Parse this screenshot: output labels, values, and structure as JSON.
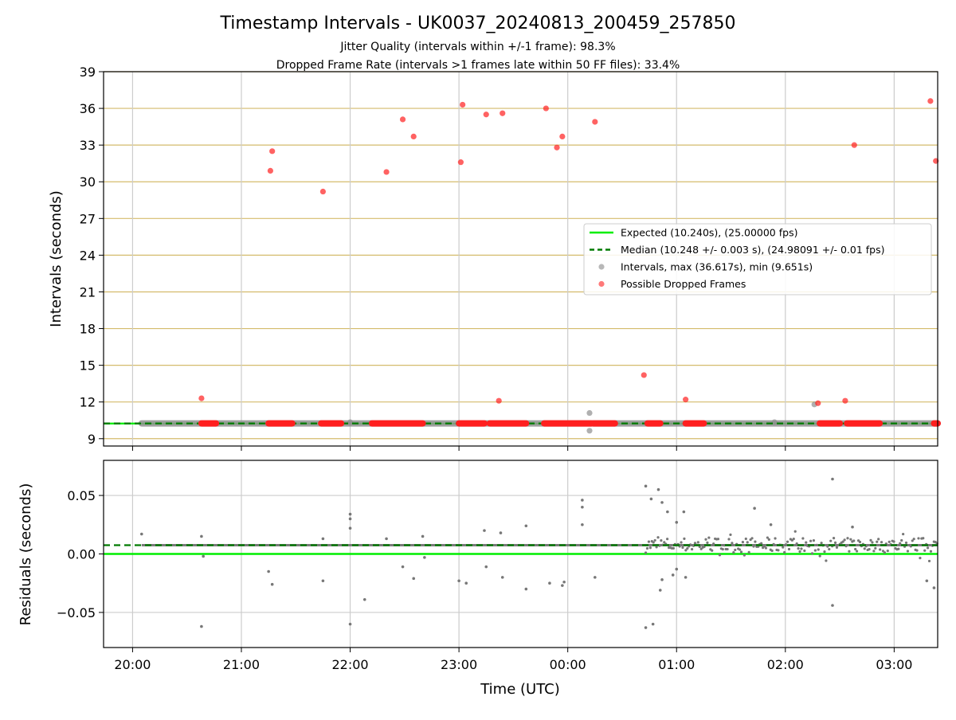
{
  "chart_data": [
    {
      "type": "scatter",
      "title": "Timestamp Intervals - UK0037_20240813_200459_257850",
      "subtitle_lines": [
        "Jitter Quality (intervals within +/-1 frame): 98.3%",
        "Dropped Frame Rate (intervals >1 frames late within 50 FF files): 33.4%"
      ],
      "ylabel": "Intervals (seconds)",
      "ylim": [
        8.4,
        39
      ],
      "yticks": [
        9,
        12,
        15,
        18,
        21,
        24,
        27,
        30,
        33,
        36,
        39
      ],
      "xlim": [
        "19:44",
        "03:24"
      ],
      "x_time_axis": true,
      "grid": "vertical gray at hour ticks, horizontal goldenrod at y ticks",
      "legend_placement": "center-right",
      "legend": [
        {
          "label": "Expected (10.240s), (25.00000 fps)",
          "kind": "line",
          "color": "#00ee00"
        },
        {
          "label": "Median (10.248 +/- 0.003 s), (24.98091 +/- 0.01 fps)",
          "kind": "dashed-line",
          "color": "#007a00"
        },
        {
          "label": "Intervals, max (36.617s), min (9.651s)",
          "kind": "marker",
          "color": "#888888"
        },
        {
          "label": "Possible Dropped Frames",
          "kind": "marker",
          "color": "#ff2020"
        }
      ],
      "expected": 10.24,
      "median": 10.248,
      "series": [
        {
          "name": "Intervals, max (36.617s), min (9.651s)",
          "baseline": {
            "x_start": "20:05",
            "x_end": "03:24",
            "y": 10.25
          },
          "outliers": [
            {
              "x": "00:12",
              "y": 11.1
            },
            {
              "x": "00:12",
              "y": 9.65
            },
            {
              "x": "22:00",
              "y": 10.35
            },
            {
              "x": "01:54",
              "y": 10.35
            },
            {
              "x": "02:16",
              "y": 11.8
            }
          ]
        },
        {
          "name": "Possible Dropped Frames",
          "dense_runs": [
            [
              "20:38",
              "20:46"
            ],
            [
              "21:15",
              "21:28"
            ],
            [
              "21:44",
              "21:55"
            ],
            [
              "22:12",
              "22:40"
            ],
            [
              "23:00",
              "23:14"
            ],
            [
              "23:17",
              "23:37"
            ],
            [
              "23:47",
              "24:13"
            ],
            [
              "24:14",
              "24:26"
            ],
            [
              "24:44",
              "24:51"
            ],
            [
              "25:05",
              "25:15"
            ],
            [
              "26:19",
              "26:30"
            ],
            [
              "26:34",
              "26:52"
            ],
            [
              "27:22",
              "27:24"
            ]
          ],
          "run_y": 10.25,
          "points": [
            {
              "x": "20:38",
              "y": 12.3
            },
            {
              "x": "21:16",
              "y": 30.9
            },
            {
              "x": "21:17",
              "y": 32.5
            },
            {
              "x": "21:45",
              "y": 29.2
            },
            {
              "x": "22:20",
              "y": 30.8
            },
            {
              "x": "22:29",
              "y": 35.1
            },
            {
              "x": "22:35",
              "y": 33.7
            },
            {
              "x": "23:01",
              "y": 31.6
            },
            {
              "x": "23:02",
              "y": 36.3
            },
            {
              "x": "23:15",
              "y": 35.5
            },
            {
              "x": "23:24",
              "y": 35.6
            },
            {
              "x": "23:22",
              "y": 12.1
            },
            {
              "x": "23:48",
              "y": 36.0
            },
            {
              "x": "23:54",
              "y": 32.8
            },
            {
              "x": "23:57",
              "y": 33.7
            },
            {
              "x": "24:15",
              "y": 34.9
            },
            {
              "x": "24:42",
              "y": 14.2
            },
            {
              "x": "25:05",
              "y": 12.2
            },
            {
              "x": "26:18",
              "y": 11.9
            },
            {
              "x": "26:33",
              "y": 12.1
            },
            {
              "x": "26:38",
              "y": 33.0
            },
            {
              "x": "27:20",
              "y": 36.6
            },
            {
              "x": "27:23",
              "y": 31.7
            }
          ]
        }
      ]
    },
    {
      "type": "scatter",
      "xlabel": "Time (UTC)",
      "ylabel": "Residuals (seconds)",
      "ylim": [
        -0.08,
        0.08
      ],
      "yticks": [
        -0.05,
        0.0,
        0.05
      ],
      "ytick_labels": [
        "−0.05",
        "0.00",
        "0.05"
      ],
      "xticks": [
        "20:00",
        "21:00",
        "22:00",
        "23:00",
        "00:00",
        "01:00",
        "02:00",
        "03:00"
      ],
      "xlim": [
        "19:44",
        "03:24"
      ],
      "expected_residual": 0.0,
      "median_residual": 0.0075,
      "grid": "gray at x and y ticks",
      "series": [
        {
          "name": "Residuals",
          "baseline": {
            "x_start": "20:05",
            "x_end": "03:24",
            "y": 0.0075
          },
          "scatter_zone_start": "00:43",
          "points": [
            {
              "x": "20:05",
              "y": 0.017
            },
            {
              "x": "20:38",
              "y": 0.015
            },
            {
              "x": "20:39",
              "y": -0.002
            },
            {
              "x": "20:38",
              "y": -0.062
            },
            {
              "x": "21:15",
              "y": -0.015
            },
            {
              "x": "21:17",
              "y": -0.026
            },
            {
              "x": "21:45",
              "y": 0.013
            },
            {
              "x": "21:45",
              "y": -0.023
            },
            {
              "x": "22:00",
              "y": 0.034
            },
            {
              "x": "22:00",
              "y": 0.03
            },
            {
              "x": "22:00",
              "y": 0.022
            },
            {
              "x": "22:00",
              "y": -0.06
            },
            {
              "x": "22:08",
              "y": -0.039
            },
            {
              "x": "22:20",
              "y": 0.013
            },
            {
              "x": "22:29",
              "y": -0.011
            },
            {
              "x": "22:35",
              "y": -0.021
            },
            {
              "x": "22:40",
              "y": 0.015
            },
            {
              "x": "22:41",
              "y": -0.003
            },
            {
              "x": "23:00",
              "y": -0.023
            },
            {
              "x": "23:04",
              "y": -0.025
            },
            {
              "x": "23:14",
              "y": 0.02
            },
            {
              "x": "23:15",
              "y": -0.011
            },
            {
              "x": "23:23",
              "y": 0.018
            },
            {
              "x": "23:24",
              "y": -0.02
            },
            {
              "x": "23:37",
              "y": 0.024
            },
            {
              "x": "23:37",
              "y": -0.03
            },
            {
              "x": "23:50",
              "y": -0.025
            },
            {
              "x": "23:57",
              "y": -0.027
            },
            {
              "x": "23:58",
              "y": -0.024
            },
            {
              "x": "24:08",
              "y": 0.046
            },
            {
              "x": "24:08",
              "y": 0.04
            },
            {
              "x": "24:08",
              "y": 0.025
            },
            {
              "x": "24:15",
              "y": -0.02
            },
            {
              "x": "24:43",
              "y": 0.058
            },
            {
              "x": "24:46",
              "y": 0.047
            },
            {
              "x": "24:50",
              "y": 0.055
            },
            {
              "x": "24:52",
              "y": 0.044
            },
            {
              "x": "24:55",
              "y": 0.036
            },
            {
              "x": "25:00",
              "y": 0.027
            },
            {
              "x": "25:04",
              "y": 0.036
            },
            {
              "x": "24:43",
              "y": -0.063
            },
            {
              "x": "24:47",
              "y": -0.06
            },
            {
              "x": "24:51",
              "y": -0.031
            },
            {
              "x": "24:52",
              "y": -0.022
            },
            {
              "x": "24:58",
              "y": -0.018
            },
            {
              "x": "25:00",
              "y": -0.013
            },
            {
              "x": "25:05",
              "y": -0.02
            },
            {
              "x": "25:43",
              "y": 0.039
            },
            {
              "x": "25:52",
              "y": 0.025
            },
            {
              "x": "26:26",
              "y": 0.064
            },
            {
              "x": "26:26",
              "y": -0.044
            },
            {
              "x": "26:37",
              "y": 0.023
            },
            {
              "x": "27:18",
              "y": -0.023
            },
            {
              "x": "27:22",
              "y": -0.029
            }
          ]
        }
      ]
    }
  ]
}
